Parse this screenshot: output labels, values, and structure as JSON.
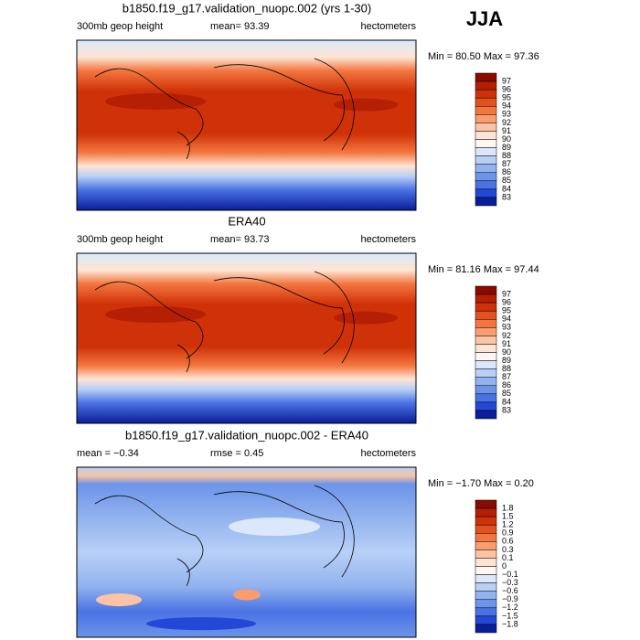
{
  "heading": "JJA",
  "panels": [
    {
      "title": "b1850.f19_g17.validation_nuopc.002 (yrs 1-30)",
      "left": "300mb geop height",
      "middle": "mean=  93.39",
      "right": "hectometers",
      "minmax": "Min =  80.50 Max =  97.36",
      "colorbar": {
        "labels": [
          "97",
          "96",
          "95",
          "94",
          "93",
          "92",
          "91",
          "90",
          "89",
          "88",
          "87",
          "86",
          "85",
          "84",
          "83"
        ],
        "colors": [
          "#8b0a00",
          "#b51f03",
          "#cf3208",
          "#e4501e",
          "#f3763f",
          "#f99d6f",
          "#fcc3a4",
          "#fee4d4",
          "#fff8f0",
          "#dbe8fb",
          "#b8d0f6",
          "#92b3ef",
          "#6c94e9",
          "#4a72e3",
          "#2348d8",
          "#0a1d9a"
        ]
      }
    },
    {
      "title": "ERA40",
      "left": "300mb geop height",
      "middle": "mean=  93.73",
      "right": "hectometers",
      "minmax": "Min =  81.16 Max =  97.44",
      "colorbar": {
        "labels": [
          "97",
          "96",
          "95",
          "94",
          "93",
          "92",
          "91",
          "90",
          "89",
          "88",
          "87",
          "86",
          "85",
          "84",
          "83"
        ],
        "colors": [
          "#8b0a00",
          "#b51f03",
          "#cf3208",
          "#e4501e",
          "#f3763f",
          "#f99d6f",
          "#fcc3a4",
          "#fee4d4",
          "#fff8f0",
          "#dbe8fb",
          "#b8d0f6",
          "#92b3ef",
          "#6c94e9",
          "#4a72e3",
          "#2348d8",
          "#0a1d9a"
        ]
      }
    },
    {
      "title": "b1850.f19_g17.validation_nuopc.002 - ERA40",
      "left": "mean =  −0.34",
      "middle": "rmse =   0.45",
      "right": "hectometers",
      "minmax": "Min =  −1.70 Max =   0.20",
      "colorbar": {
        "labels": [
          "1.8",
          "1.5",
          "1.2",
          "0.9",
          "0.6",
          "0.3",
          "0.1",
          "0",
          "−0.1",
          "−0.3",
          "−0.6",
          "−0.9",
          "−1.2",
          "−1.5",
          "−1.8"
        ],
        "colors": [
          "#8b0a00",
          "#b51f03",
          "#cf3208",
          "#e4501e",
          "#f3763f",
          "#f99d6f",
          "#fcc3a4",
          "#fee4d4",
          "#fff8f0",
          "#dbe8fb",
          "#b8d0f6",
          "#92b3ef",
          "#6c94e9",
          "#4a72e3",
          "#2348d8",
          "#0a1d9a"
        ]
      }
    }
  ]
}
